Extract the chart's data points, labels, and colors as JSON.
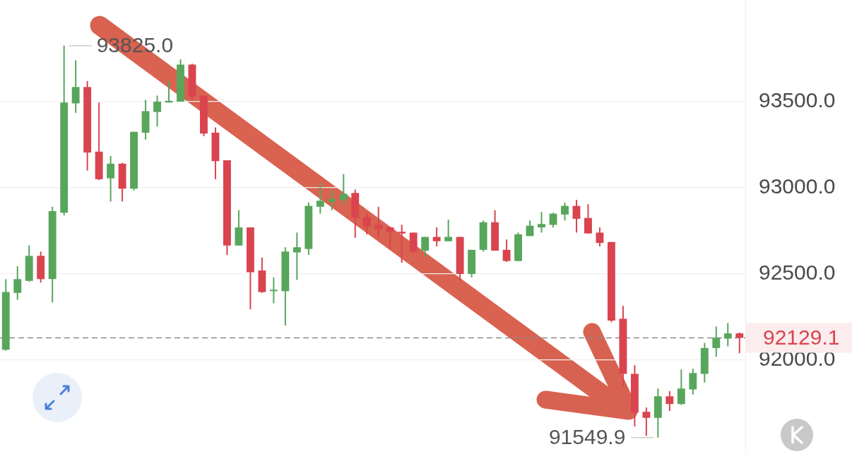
{
  "chart_data": {
    "type": "candlestick",
    "categories": [
      null,
      null,
      null,
      null,
      null,
      null,
      null,
      null,
      null,
      null,
      null,
      null,
      null,
      null,
      null,
      null,
      null,
      null,
      null,
      null,
      null,
      null,
      null,
      null,
      null,
      null,
      null,
      null,
      null,
      null,
      null,
      null,
      null,
      null,
      null,
      null,
      null,
      null,
      null,
      null,
      null,
      null,
      null,
      null,
      null,
      null,
      null,
      null,
      null,
      null,
      null,
      null,
      null,
      null,
      null,
      null,
      null,
      null,
      null,
      null,
      null,
      null,
      null,
      null
    ],
    "ohlc": [
      [
        92060,
        92470,
        92055,
        92395
      ],
      [
        92390,
        92545,
        92350,
        92470
      ],
      [
        92460,
        92665,
        92455,
        92605
      ],
      [
        92605,
        92630,
        92450,
        92470
      ],
      [
        92470,
        92890,
        92335,
        92865
      ],
      [
        92855,
        93825.0,
        92840,
        93495
      ],
      [
        93490,
        93740,
        93435,
        93585
      ],
      [
        93585,
        93620,
        93100,
        93205
      ],
      [
        93210,
        93495,
        93045,
        93050
      ],
      [
        93055,
        93185,
        92920,
        93140
      ],
      [
        93140,
        93145,
        92920,
        92995
      ],
      [
        92995,
        93325,
        92985,
        93325
      ],
      [
        93320,
        93510,
        93280,
        93445
      ],
      [
        93440,
        93535,
        93355,
        93500
      ],
      [
        93495,
        93620,
        93495,
        93505
      ],
      [
        93500,
        93745,
        93500,
        93715
      ],
      [
        93715,
        93720,
        93505,
        93530
      ],
      [
        93535,
        93535,
        93300,
        93315
      ],
      [
        93320,
        93350,
        93050,
        93155
      ],
      [
        93160,
        93160,
        92610,
        92665
      ],
      [
        92665,
        92870,
        92665,
        92770
      ],
      [
        92770,
        92770,
        92295,
        92510
      ],
      [
        92520,
        92595,
        92390,
        92395
      ],
      [
        92400,
        92480,
        92330,
        92405
      ],
      [
        92400,
        92655,
        92200,
        92630
      ],
      [
        92625,
        92740,
        92465,
        92655
      ],
      [
        92645,
        92915,
        92610,
        92895
      ],
      [
        92890,
        93030,
        92850,
        92925
      ],
      [
        92920,
        92990,
        92870,
        92935
      ],
      [
        92930,
        93080,
        92900,
        92965
      ],
      [
        92970,
        92990,
        92710,
        92825
      ],
      [
        92830,
        92850,
        92730,
        92775
      ],
      [
        92785,
        92890,
        92710,
        92760
      ],
      [
        92770,
        92775,
        92645,
        92745
      ],
      [
        92745,
        92785,
        92565,
        92735
      ],
      [
        92740,
        92740,
        92620,
        92630
      ],
      [
        92635,
        92715,
        92600,
        92715
      ],
      [
        92715,
        92770,
        92660,
        92690
      ],
      [
        92690,
        92815,
        92690,
        92715
      ],
      [
        92715,
        92715,
        92460,
        92500
      ],
      [
        92500,
        92640,
        92480,
        92640
      ],
      [
        92640,
        92810,
        92630,
        92800
      ],
      [
        92800,
        92870,
        92635,
        92635
      ],
      [
        92640,
        92700,
        92570,
        92575
      ],
      [
        92575,
        92740,
        92575,
        92730
      ],
      [
        92720,
        92810,
        92720,
        92780
      ],
      [
        92770,
        92860,
        92740,
        92790
      ],
      [
        92785,
        92855,
        92770,
        92850
      ],
      [
        92845,
        92915,
        92810,
        92895
      ],
      [
        92895,
        92930,
        92740,
        92820
      ],
      [
        92825,
        92905,
        92735,
        92735
      ],
      [
        92740,
        92770,
        92660,
        92680
      ],
      [
        92685,
        92685,
        92220,
        92230
      ],
      [
        92240,
        92315,
        91850,
        91920
      ],
      [
        91920,
        91970,
        91615,
        91695
      ],
      [
        91700,
        91725,
        91560,
        91665
      ],
      [
        91665,
        91835,
        91549.9,
        91790
      ],
      [
        91790,
        91820,
        91705,
        91745
      ],
      [
        91745,
        91945,
        91740,
        91835
      ],
      [
        91830,
        91950,
        91800,
        91925
      ],
      [
        91920,
        92100,
        91870,
        92070
      ],
      [
        92070,
        92195,
        92020,
        92130
      ],
      [
        92125,
        92215,
        92080,
        92155
      ],
      [
        92155,
        92160,
        92040,
        92129.1
      ]
    ],
    "colors": [
      "#58a65c",
      "#58a65c",
      "#58a65c",
      "#d9444f",
      "#58a65c",
      "#58a65c",
      "#58a65c",
      "#d9444f",
      "#d9444f",
      "#58a65c",
      "#d9444f",
      "#58a65c",
      "#58a65c",
      "#58a65c",
      "#58a65c",
      "#58a65c",
      "#d9444f",
      "#d9444f",
      "#d9444f",
      "#d9444f",
      "#58a65c",
      "#d9444f",
      "#d9444f",
      "#58a65c",
      "#58a65c",
      "#58a65c",
      "#58a65c",
      "#58a65c",
      "#58a65c",
      "#58a65c",
      "#d9444f",
      "#d9444f",
      "#d9444f",
      "#d9444f",
      "#d9444f",
      "#d9444f",
      "#58a65c",
      "#d9444f",
      "#58a65c",
      "#d9444f",
      "#58a65c",
      "#58a65c",
      "#d9444f",
      "#d9444f",
      "#58a65c",
      "#58a65c",
      "#58a65c",
      "#58a65c",
      "#58a65c",
      "#d9444f",
      "#d9444f",
      "#d9444f",
      "#d9444f",
      "#d9444f",
      "#d9444f",
      "#d9444f",
      "#58a65c",
      "#d9444f",
      "#58a65c",
      "#58a65c",
      "#58a65c",
      "#58a65c",
      "#58a65c",
      "#d9444f"
    ],
    "ylim": [
      91455,
      94090
    ],
    "yticks": [
      {
        "value": 92000,
        "label": "92000.0"
      },
      {
        "value": 92500,
        "label": "92500.0"
      },
      {
        "value": 93000,
        "label": "93000.0"
      },
      {
        "value": 93500,
        "label": "93500.0"
      }
    ],
    "grid": "y",
    "tick_labels": "y",
    "ref_lines": [
      {
        "axis": "y",
        "value": 92129.1,
        "label": "92129.1",
        "color": "#8a8a8a",
        "line_style": "dashed"
      }
    ],
    "annotations": [
      "93825.0",
      "91549.9"
    ]
  }
}
